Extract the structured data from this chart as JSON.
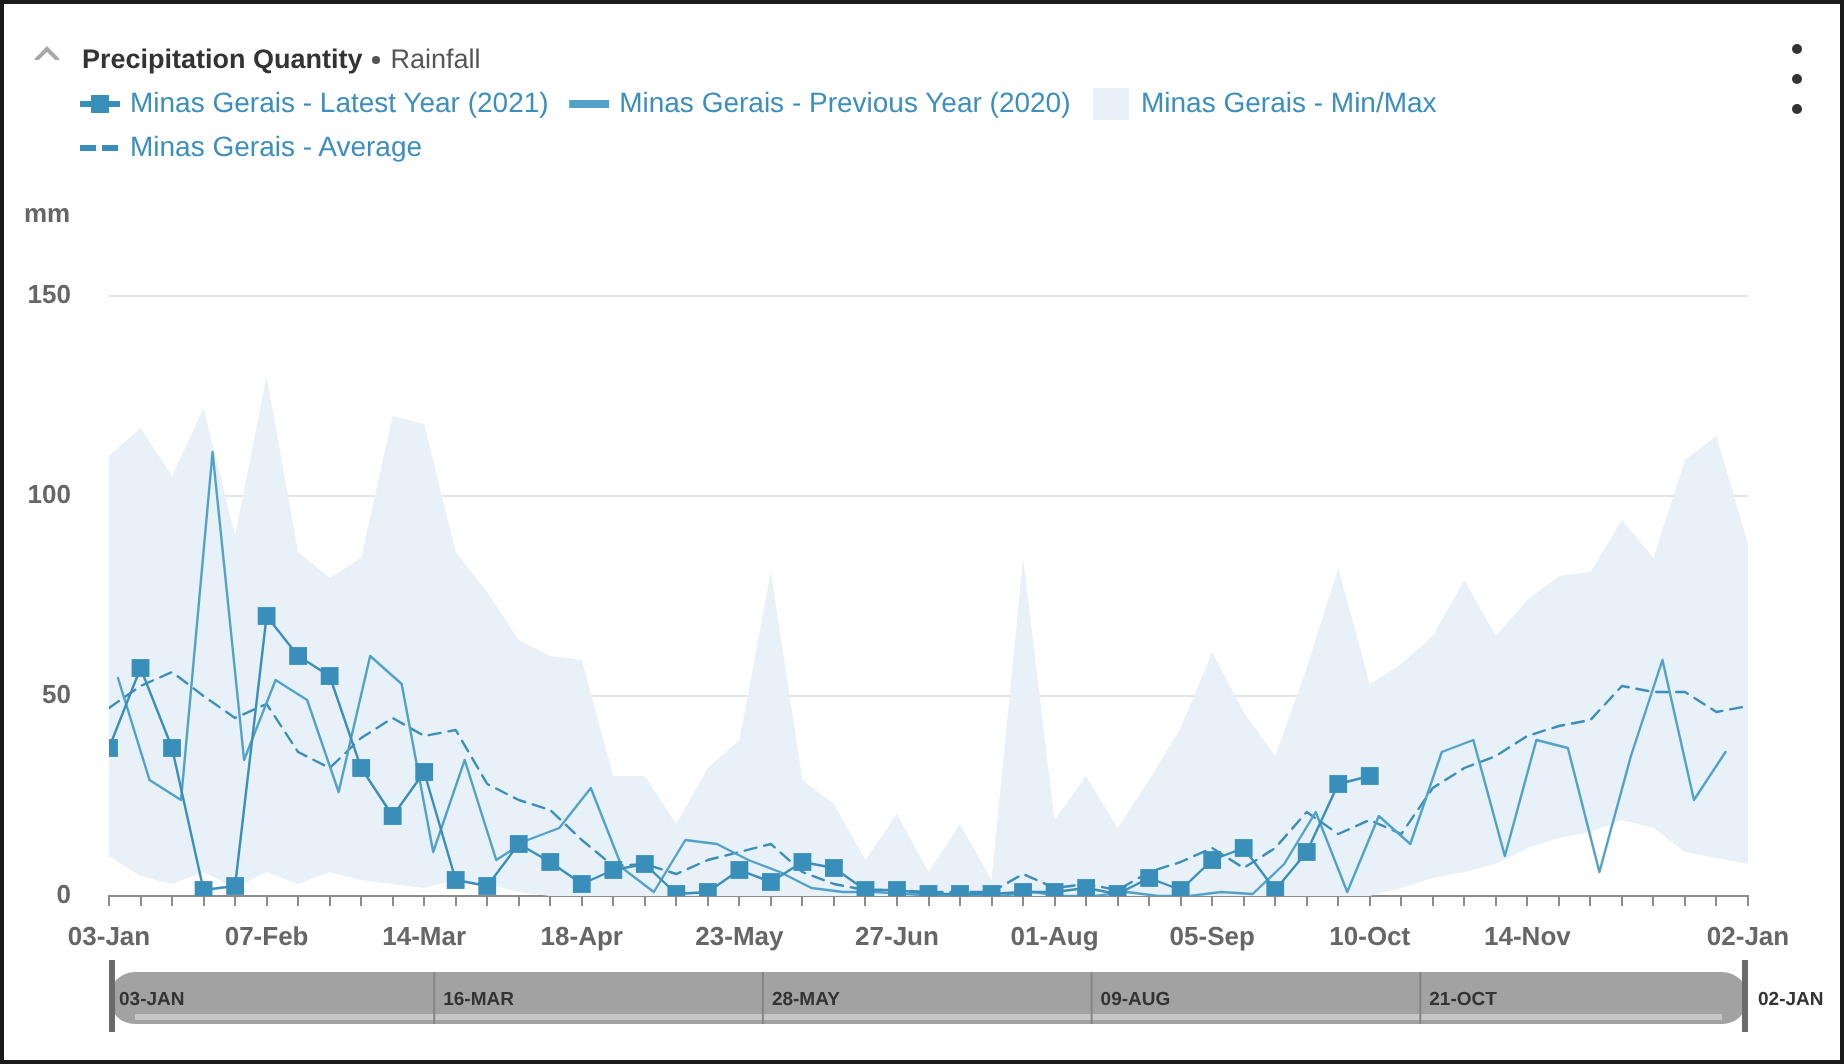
{
  "chart_data": {
    "type": "line",
    "title": "Precipitation Quantity",
    "subtitle": "Rainfall",
    "ylabel": "mm",
    "legend": "top left",
    "grid": "y",
    "x": [
      "2021-01-03",
      "2021-01-10",
      "2021-01-17",
      "2021-01-24",
      "2021-01-31",
      "2021-02-07",
      "2021-02-14",
      "2021-02-21",
      "2021-02-28",
      "2021-03-07",
      "2021-03-14",
      "2021-03-21",
      "2021-03-28",
      "2021-04-04",
      "2021-04-11",
      "2021-04-18",
      "2021-04-25",
      "2021-05-02",
      "2021-05-09",
      "2021-05-16",
      "2021-05-23",
      "2021-05-30",
      "2021-06-06",
      "2021-06-13",
      "2021-06-20",
      "2021-06-27",
      "2021-07-04",
      "2021-07-11",
      "2021-07-18",
      "2021-07-25",
      "2021-08-01",
      "2021-08-08",
      "2021-08-15",
      "2021-08-22",
      "2021-08-29",
      "2021-09-05",
      "2021-09-12",
      "2021-09-19",
      "2021-09-26",
      "2021-10-03",
      "2021-10-10",
      "2021-10-17",
      "2021-10-24",
      "2021-10-31",
      "2021-11-07",
      "2021-11-14",
      "2021-11-21",
      "2021-11-28",
      "2021-12-05",
      "2021-12-12",
      "2021-12-19",
      "2021-12-26",
      "2022-01-02"
    ],
    "xlim": [
      "2021-01-03",
      "2022-01-02"
    ],
    "xticks": [
      {
        "value": "2021-01-03",
        "label": "03-Jan"
      },
      {
        "value": "2021-01-10",
        "label": null
      },
      {
        "value": "2021-01-17",
        "label": null
      },
      {
        "value": "2021-01-24",
        "label": null
      },
      {
        "value": "2021-01-31",
        "label": null
      },
      {
        "value": "2021-02-07",
        "label": "07-Feb"
      },
      {
        "value": "2021-02-14",
        "label": null
      },
      {
        "value": "2021-02-21",
        "label": null
      },
      {
        "value": "2021-02-28",
        "label": null
      },
      {
        "value": "2021-03-07",
        "label": null
      },
      {
        "value": "2021-03-14",
        "label": "14-Mar"
      },
      {
        "value": "2021-03-21",
        "label": null
      },
      {
        "value": "2021-03-28",
        "label": null
      },
      {
        "value": "2021-04-04",
        "label": null
      },
      {
        "value": "2021-04-11",
        "label": null
      },
      {
        "value": "2021-04-18",
        "label": "18-Apr"
      },
      {
        "value": "2021-04-25",
        "label": null
      },
      {
        "value": "2021-05-02",
        "label": null
      },
      {
        "value": "2021-05-09",
        "label": null
      },
      {
        "value": "2021-05-16",
        "label": null
      },
      {
        "value": "2021-05-23",
        "label": "23-May"
      },
      {
        "value": "2021-05-30",
        "label": null
      },
      {
        "value": "2021-06-06",
        "label": null
      },
      {
        "value": "2021-06-13",
        "label": null
      },
      {
        "value": "2021-06-20",
        "label": null
      },
      {
        "value": "2021-06-27",
        "label": "27-Jun"
      },
      {
        "value": "2021-07-04",
        "label": null
      },
      {
        "value": "2021-07-11",
        "label": null
      },
      {
        "value": "2021-07-18",
        "label": null
      },
      {
        "value": "2021-07-25",
        "label": null
      },
      {
        "value": "2021-08-01",
        "label": "01-Aug"
      },
      {
        "value": "2021-08-08",
        "label": null
      },
      {
        "value": "2021-08-15",
        "label": null
      },
      {
        "value": "2021-08-22",
        "label": null
      },
      {
        "value": "2021-08-29",
        "label": null
      },
      {
        "value": "2021-09-05",
        "label": "05-Sep"
      },
      {
        "value": "2021-09-12",
        "label": null
      },
      {
        "value": "2021-09-19",
        "label": null
      },
      {
        "value": "2021-09-26",
        "label": null
      },
      {
        "value": "2021-10-03",
        "label": null
      },
      {
        "value": "2021-10-10",
        "label": "10-Oct"
      },
      {
        "value": "2021-10-17",
        "label": null
      },
      {
        "value": "2021-10-24",
        "label": null
      },
      {
        "value": "2021-10-31",
        "label": null
      },
      {
        "value": "2021-11-07",
        "label": null
      },
      {
        "value": "2021-11-14",
        "label": "14-Nov"
      },
      {
        "value": "2021-11-21",
        "label": null
      },
      {
        "value": "2021-11-28",
        "label": null
      },
      {
        "value": "2021-12-05",
        "label": null
      },
      {
        "value": "2021-12-12",
        "label": null
      },
      {
        "value": "2021-12-19",
        "label": null
      },
      {
        "value": "2021-12-26",
        "label": null
      },
      {
        "value": "2022-01-02",
        "label": "02-Jan"
      }
    ],
    "ylim": [
      0,
      150
    ],
    "yticks": [
      0,
      50,
      100,
      150
    ],
    "x2lim": [
      "2021-01-03",
      "2022-01-02"
    ],
    "x2ticks": [
      {
        "value": "2021-01-03",
        "label": "03-JAN"
      },
      {
        "value": "2021-03-16",
        "label": "16-MAR"
      },
      {
        "value": "2021-05-28",
        "label": "28-MAY"
      },
      {
        "value": "2021-08-09",
        "label": "09-AUG"
      },
      {
        "value": "2021-10-21",
        "label": "21-OCT"
      },
      {
        "value": "2022-01-02",
        "label": "02-JAN"
      }
    ],
    "series": [
      {
        "name": "Minas Gerais - Latest Year (2021)",
        "color": "#3a8fba",
        "marker": "square",
        "line_style": "solid",
        "values": [
          37,
          57,
          37,
          1.5,
          2.5,
          70,
          60,
          55,
          32,
          20,
          31,
          4,
          2.5,
          13,
          8.5,
          3,
          6.5,
          8,
          0.5,
          1,
          6.5,
          3.5,
          8.5,
          7,
          1.5,
          1.5,
          0.5,
          0.5,
          0.5,
          1,
          1,
          2,
          0.5,
          4.5,
          1.5,
          9,
          12,
          1.5,
          11,
          28,
          30,
          null,
          null,
          null,
          null,
          null,
          null,
          null,
          null,
          null,
          null,
          null,
          null
        ]
      },
      {
        "name": "Minas Gerais - Previous Year (2020)",
        "color": "#52a2c8",
        "marker": "none",
        "line_style": "solid",
        "x": [
          "2021-01-05",
          "2021-01-12",
          "2021-01-19",
          "2021-01-26",
          "2021-02-02",
          "2021-02-09",
          "2021-02-16",
          "2021-02-23",
          "2021-03-02",
          "2021-03-09",
          "2021-03-16",
          "2021-03-23",
          "2021-03-30",
          "2021-04-06",
          "2021-04-13",
          "2021-04-20",
          "2021-04-27",
          "2021-05-04",
          "2021-05-11",
          "2021-05-18",
          "2021-05-25",
          "2021-06-01",
          "2021-06-08",
          "2021-06-15",
          "2021-06-22",
          "2021-06-29",
          "2021-07-06",
          "2021-07-13",
          "2021-07-20",
          "2021-07-27",
          "2021-08-03",
          "2021-08-10",
          "2021-08-17",
          "2021-08-24",
          "2021-08-31",
          "2021-09-07",
          "2021-09-14",
          "2021-09-21",
          "2021-09-28",
          "2021-10-05",
          "2021-10-12",
          "2021-10-19",
          "2021-10-26",
          "2021-11-02",
          "2021-11-09",
          "2021-11-16",
          "2021-11-23",
          "2021-11-30",
          "2021-12-07",
          "2021-12-14",
          "2021-12-21",
          "2021-12-28"
        ],
        "values": [
          54.5,
          29,
          24,
          111,
          34,
          54,
          49,
          26,
          60,
          53,
          11,
          34,
          9,
          14,
          17,
          27,
          7,
          1,
          14,
          13,
          9,
          6,
          2,
          1,
          1,
          0.5,
          0,
          0,
          0,
          1,
          0,
          0,
          1,
          0,
          0,
          1,
          0.5,
          8,
          21,
          1,
          20,
          13,
          36,
          39,
          10,
          39,
          37,
          6,
          35,
          59,
          24,
          36
        ]
      },
      {
        "name": "Minas Gerais - Min/Max",
        "type": "area",
        "color": "#e7f1f7",
        "values": [
          null,
          null,
          null,
          null,
          null,
          null,
          null,
          null,
          null,
          null,
          null,
          null,
          null,
          null,
          null,
          null,
          null,
          null,
          null,
          null,
          null,
          null,
          null,
          null,
          null,
          null,
          null,
          null,
          null,
          null,
          null,
          null,
          null,
          null,
          null,
          null,
          null,
          null,
          null,
          null,
          null,
          null,
          null,
          null,
          null,
          null,
          null,
          null,
          null,
          null,
          null,
          null,
          null
        ],
        "lower": [
          10,
          5,
          3,
          6,
          2,
          6,
          3,
          6,
          4,
          3,
          2,
          4,
          3,
          1,
          0,
          0,
          0,
          0,
          0,
          0,
          0,
          0,
          0,
          0,
          0,
          0,
          0,
          0,
          0,
          0,
          0,
          0,
          0,
          0,
          0,
          0,
          0,
          0,
          0,
          0,
          0,
          2,
          4.5,
          6,
          8,
          12,
          14.5,
          16,
          19,
          17,
          11,
          9.5,
          8
        ],
        "upper": [
          110,
          117,
          105,
          122,
          90,
          130,
          86,
          79.5,
          84.5,
          120,
          118,
          86,
          76,
          64,
          60,
          59,
          30,
          30,
          18,
          32,
          39,
          81,
          29,
          23,
          9,
          20.5,
          6,
          18,
          4,
          84.5,
          19,
          30,
          17,
          29,
          42,
          61,
          46,
          35,
          57,
          82,
          53,
          58,
          65,
          79,
          65,
          74,
          80,
          81,
          94,
          84.5,
          109,
          115,
          88
        ]
      },
      {
        "name": "Minas Gerais - Average",
        "color": "#3a8fba",
        "marker": "none",
        "line_style": "dashed",
        "values": [
          47,
          52.5,
          56,
          50,
          44.5,
          48,
          36,
          32,
          39.5,
          44.5,
          40,
          41.5,
          28,
          24,
          21.5,
          14,
          7.5,
          8,
          5.5,
          9,
          11,
          13,
          6,
          3,
          1.5,
          1.5,
          1,
          1,
          1,
          5.5,
          2,
          3,
          1.5,
          6,
          8.5,
          12,
          7,
          12,
          21,
          15.5,
          19,
          15.5,
          27,
          32,
          35,
          40,
          42.5,
          44,
          52.5,
          51,
          51,
          46,
          47.5
        ]
      }
    ]
  }
}
